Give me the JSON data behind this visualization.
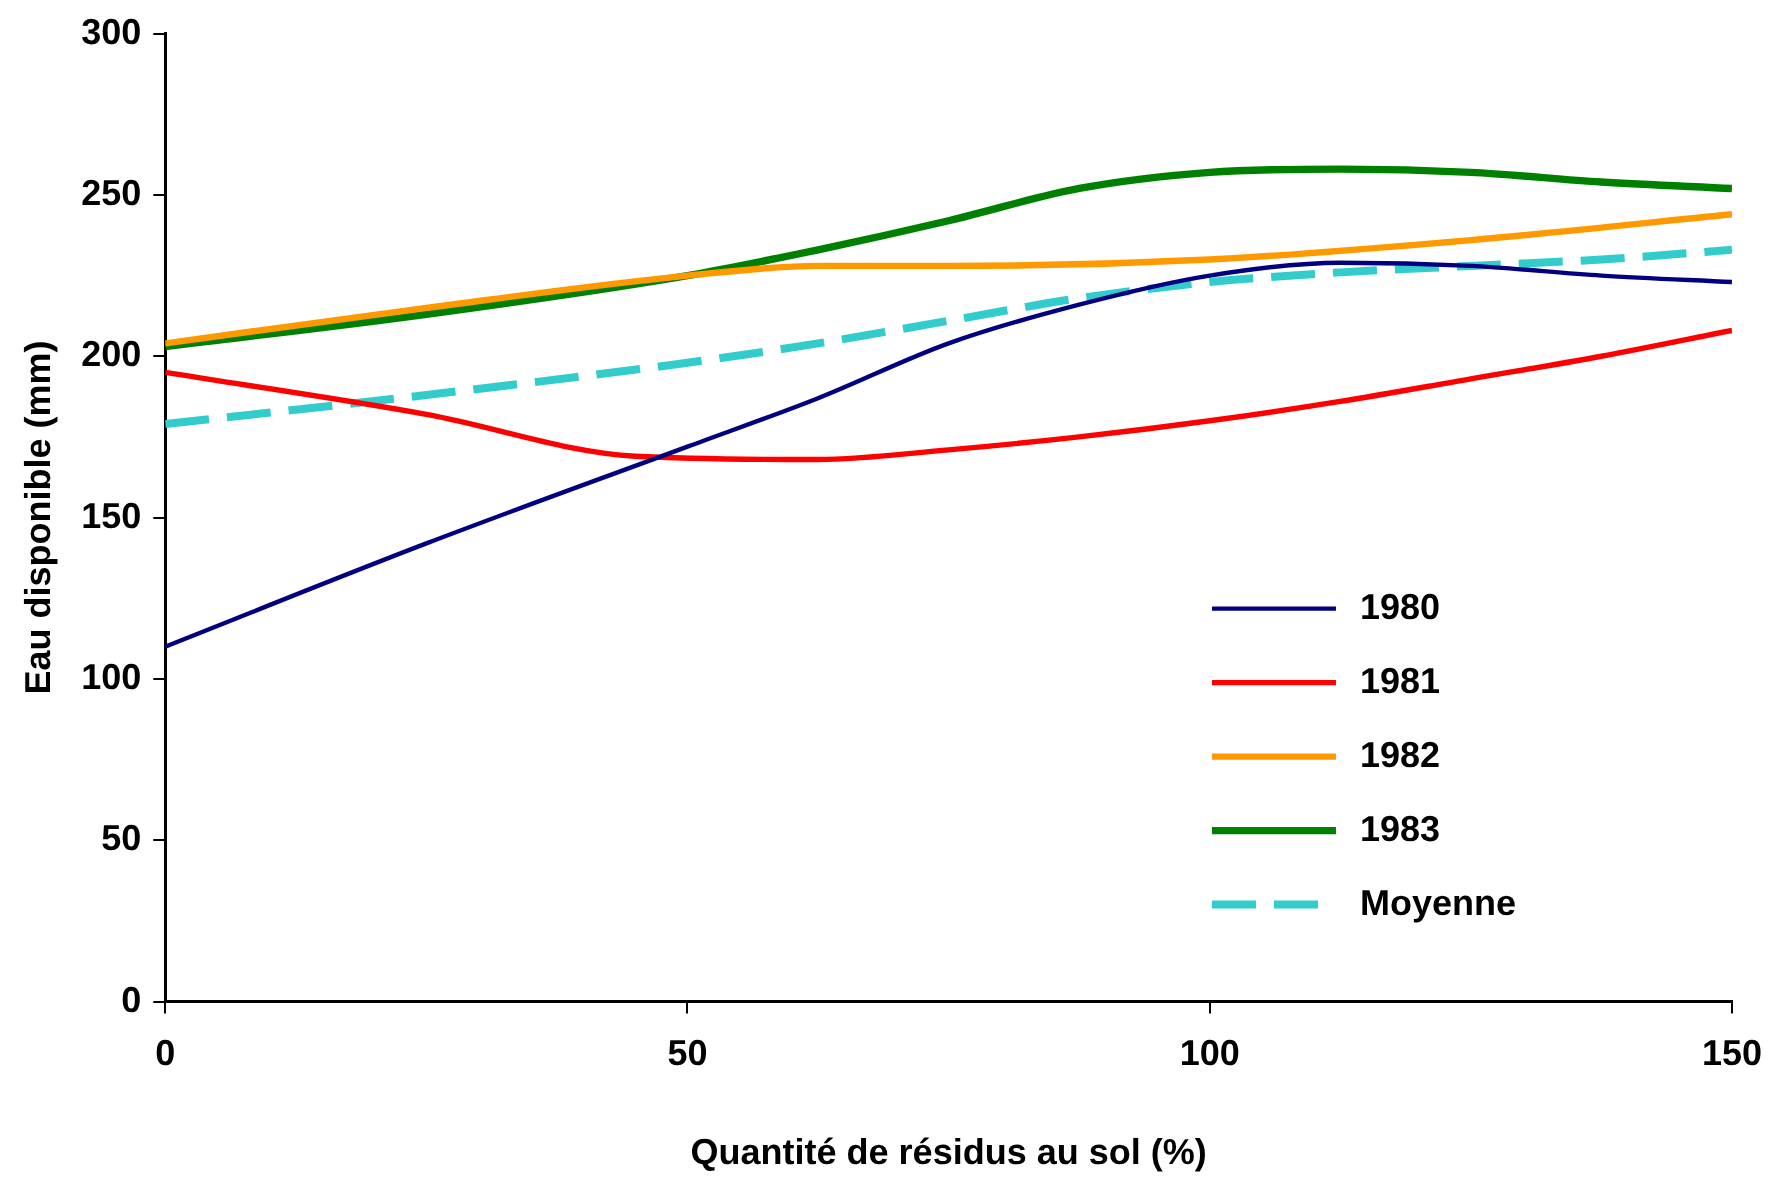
{
  "chart_data": {
    "type": "line",
    "xlabel": "Quantité de résidus au sol (%)",
    "ylabel": "Eau disponible (mm)",
    "xlim": [
      0,
      150
    ],
    "xticks": [
      0,
      50,
      100,
      150
    ],
    "ylim": [
      0,
      300
    ],
    "yticks": [
      0,
      50,
      100,
      150,
      200,
      250,
      300
    ],
    "grid": false,
    "legend": "bottom right",
    "marker": "none",
    "series": [
      {
        "name": "1980",
        "color": "#000080",
        "line_style": "solid",
        "x": [
          0,
          25,
          50,
          62.5,
          75,
          87.5,
          100,
          112.5,
          125,
          137.5,
          150
        ],
        "values": [
          110,
          142,
          172,
          187,
          204,
          216,
          225,
          229,
          228,
          225,
          223
        ]
      },
      {
        "name": "1981",
        "color": "#ff0000",
        "line_style": "solid",
        "x": [
          0,
          25,
          45,
          62.5,
          75,
          87.5,
          100,
          112.5,
          125,
          137.5,
          150
        ],
        "values": [
          195,
          182,
          169,
          168,
          171,
          175,
          180,
          186,
          193,
          200,
          208
        ]
      },
      {
        "name": "1982",
        "color": "#ff9900",
        "line_style": "solid",
        "x": [
          0,
          25,
          50,
          62.5,
          75,
          100,
          125,
          150
        ],
        "values": [
          204,
          215,
          225,
          228,
          228,
          230,
          236,
          244
        ]
      },
      {
        "name": "1983",
        "color": "#008000",
        "line_style": "solid",
        "x": [
          0,
          25,
          50,
          62.5,
          75,
          87.5,
          100,
          112.5,
          125,
          137.5,
          150
        ],
        "values": [
          203,
          213,
          225,
          233,
          242,
          252,
          257,
          258,
          257,
          254,
          252
        ]
      },
      {
        "name": "Moyenne",
        "color": "#33cccc",
        "line_style": "dashed",
        "x": [
          0,
          25,
          50,
          62.5,
          75,
          87.5,
          100,
          112.5,
          125,
          137.5,
          150
        ],
        "values": [
          179,
          188,
          198,
          204,
          211,
          218,
          223,
          226,
          228,
          230,
          233
        ]
      }
    ]
  }
}
